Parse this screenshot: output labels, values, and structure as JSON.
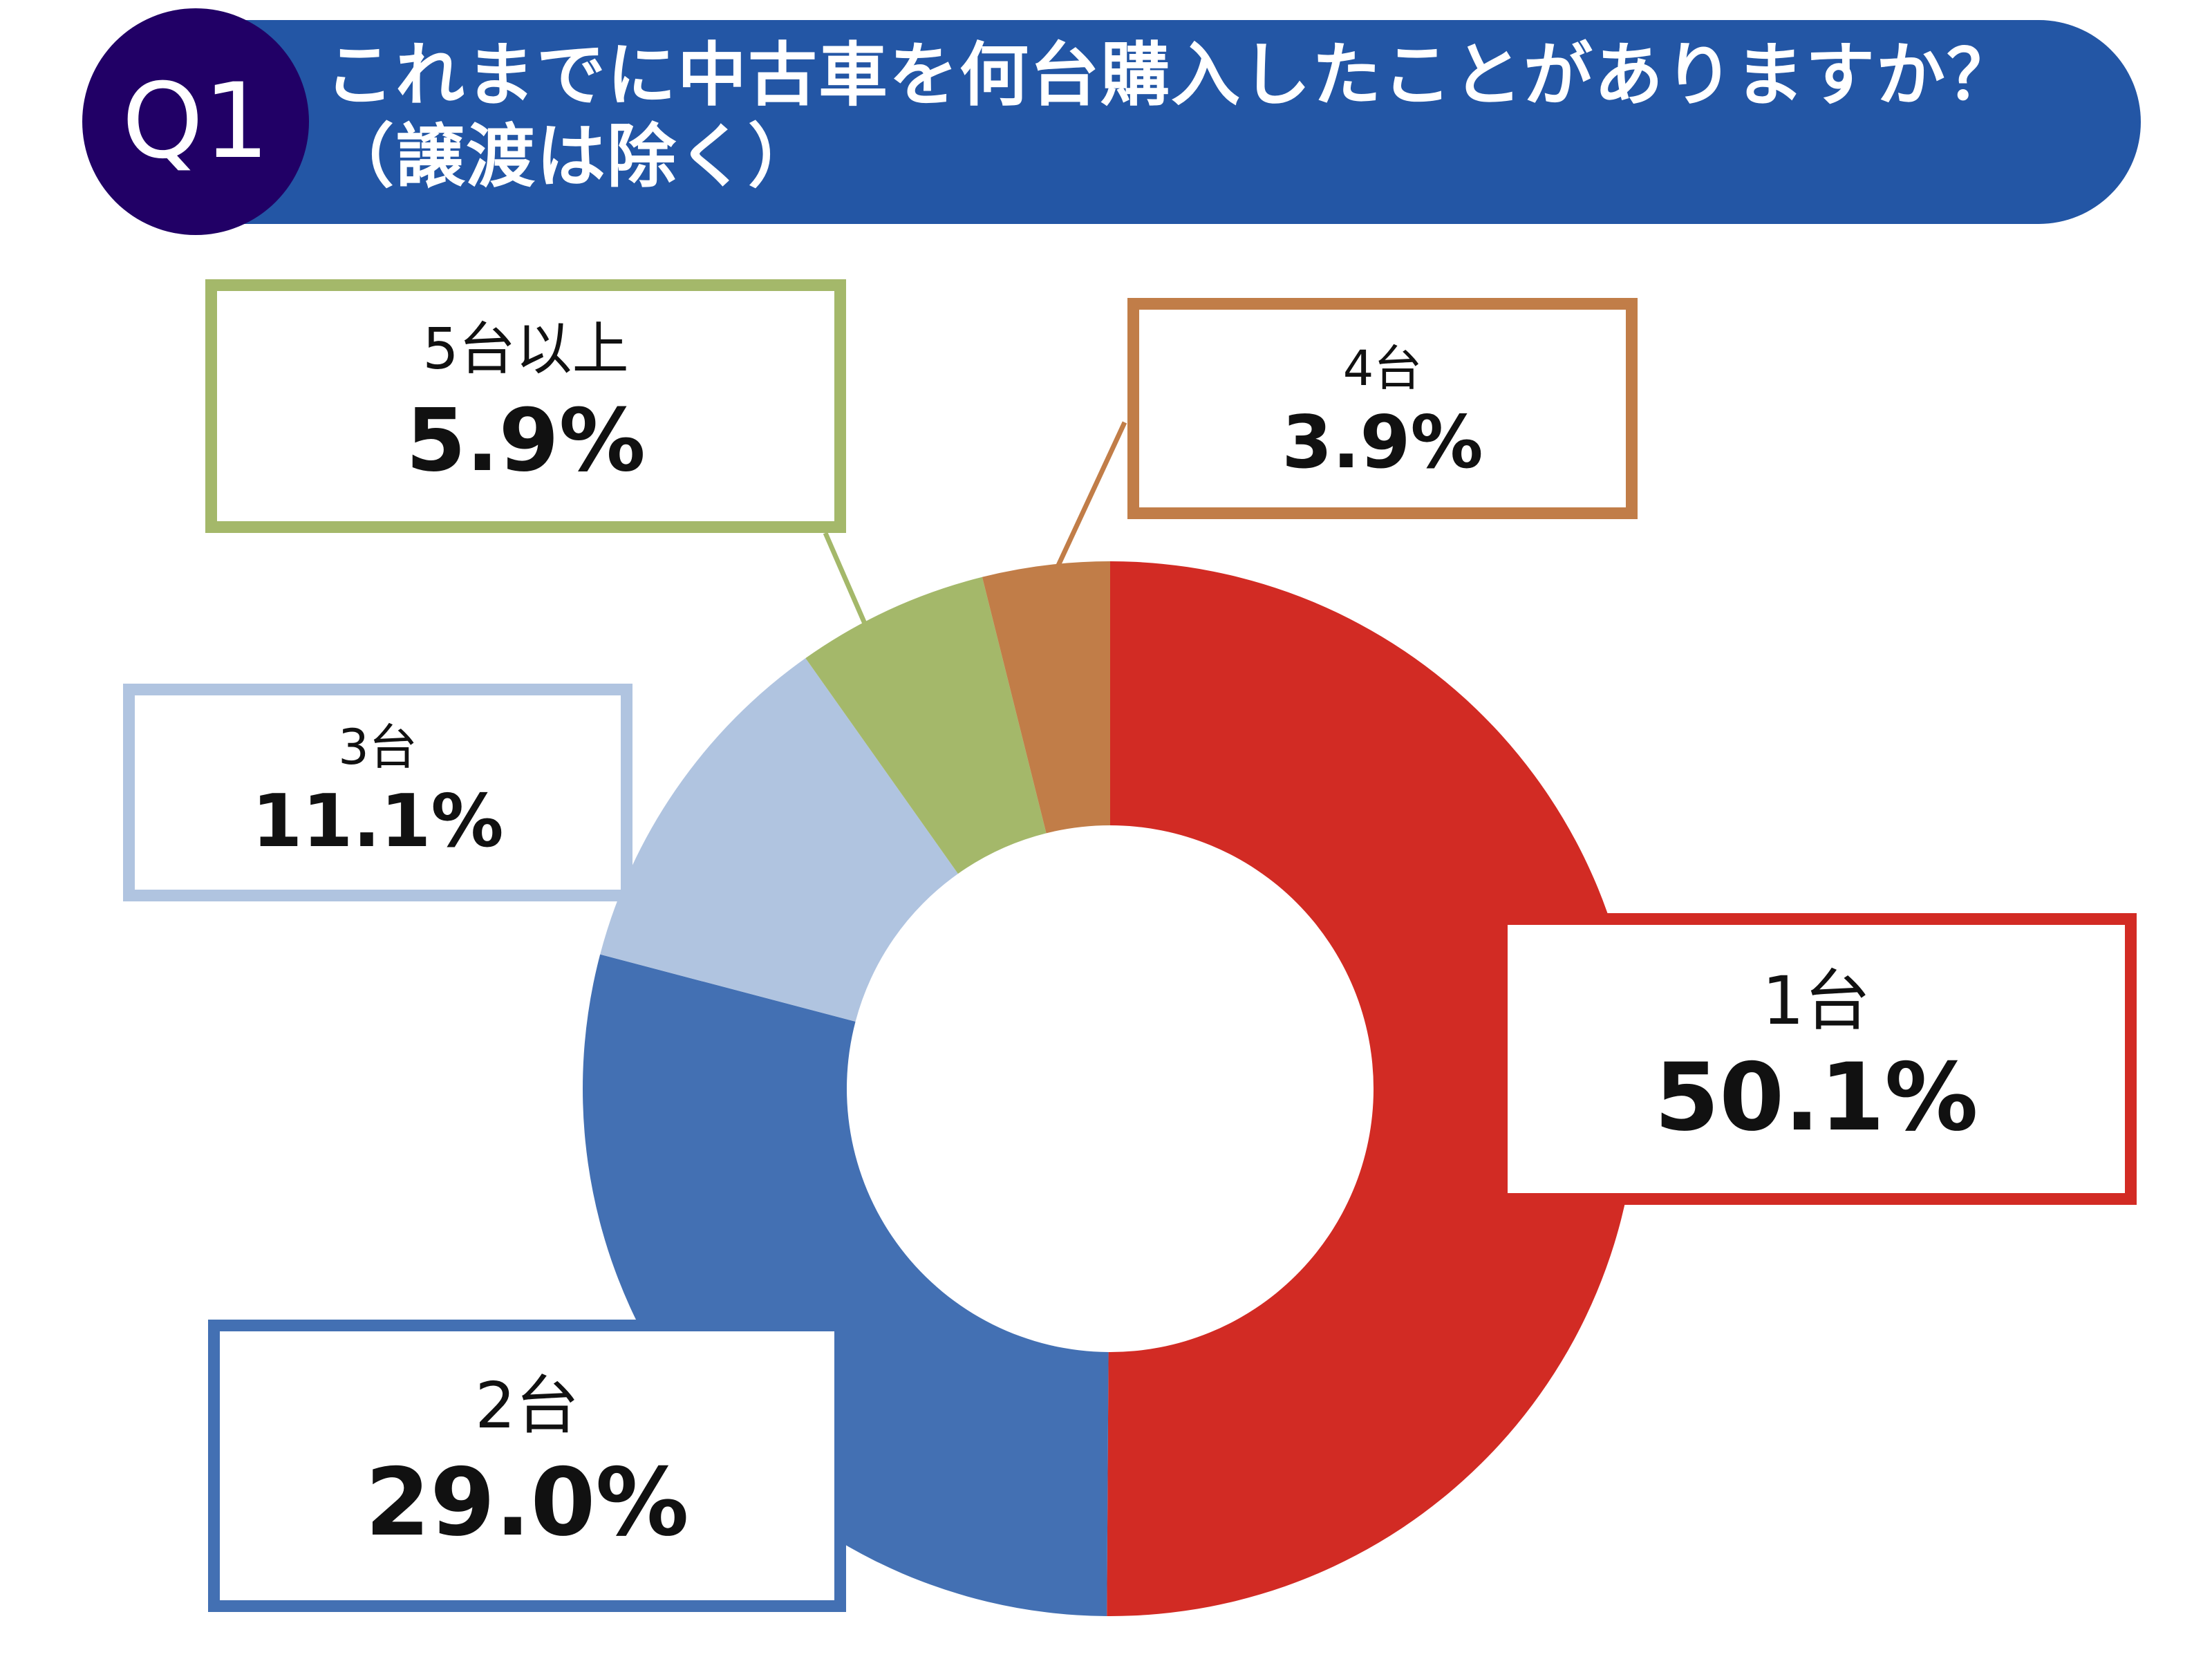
{
  "header": {
    "badge": "Q1",
    "title_line1": "これまでに中古車を何台購入したことがありますか？",
    "title_line2": "（譲渡は除く）"
  },
  "chart_data": {
    "type": "pie",
    "style": "donut",
    "categories": [
      "1台",
      "2台",
      "3台",
      "5台以上",
      "4台"
    ],
    "values": [
      50.1,
      29.0,
      11.1,
      5.9,
      3.9
    ],
    "labels": [
      "50.1%",
      "29.0%",
      "11.1%",
      "5.9%",
      "3.9%"
    ],
    "colors": [
      "#D22B24",
      "#4370B3",
      "#B0C4E0",
      "#A4B86A",
      "#C17D48"
    ],
    "unit": "%",
    "direction": "clockwise from top"
  }
}
